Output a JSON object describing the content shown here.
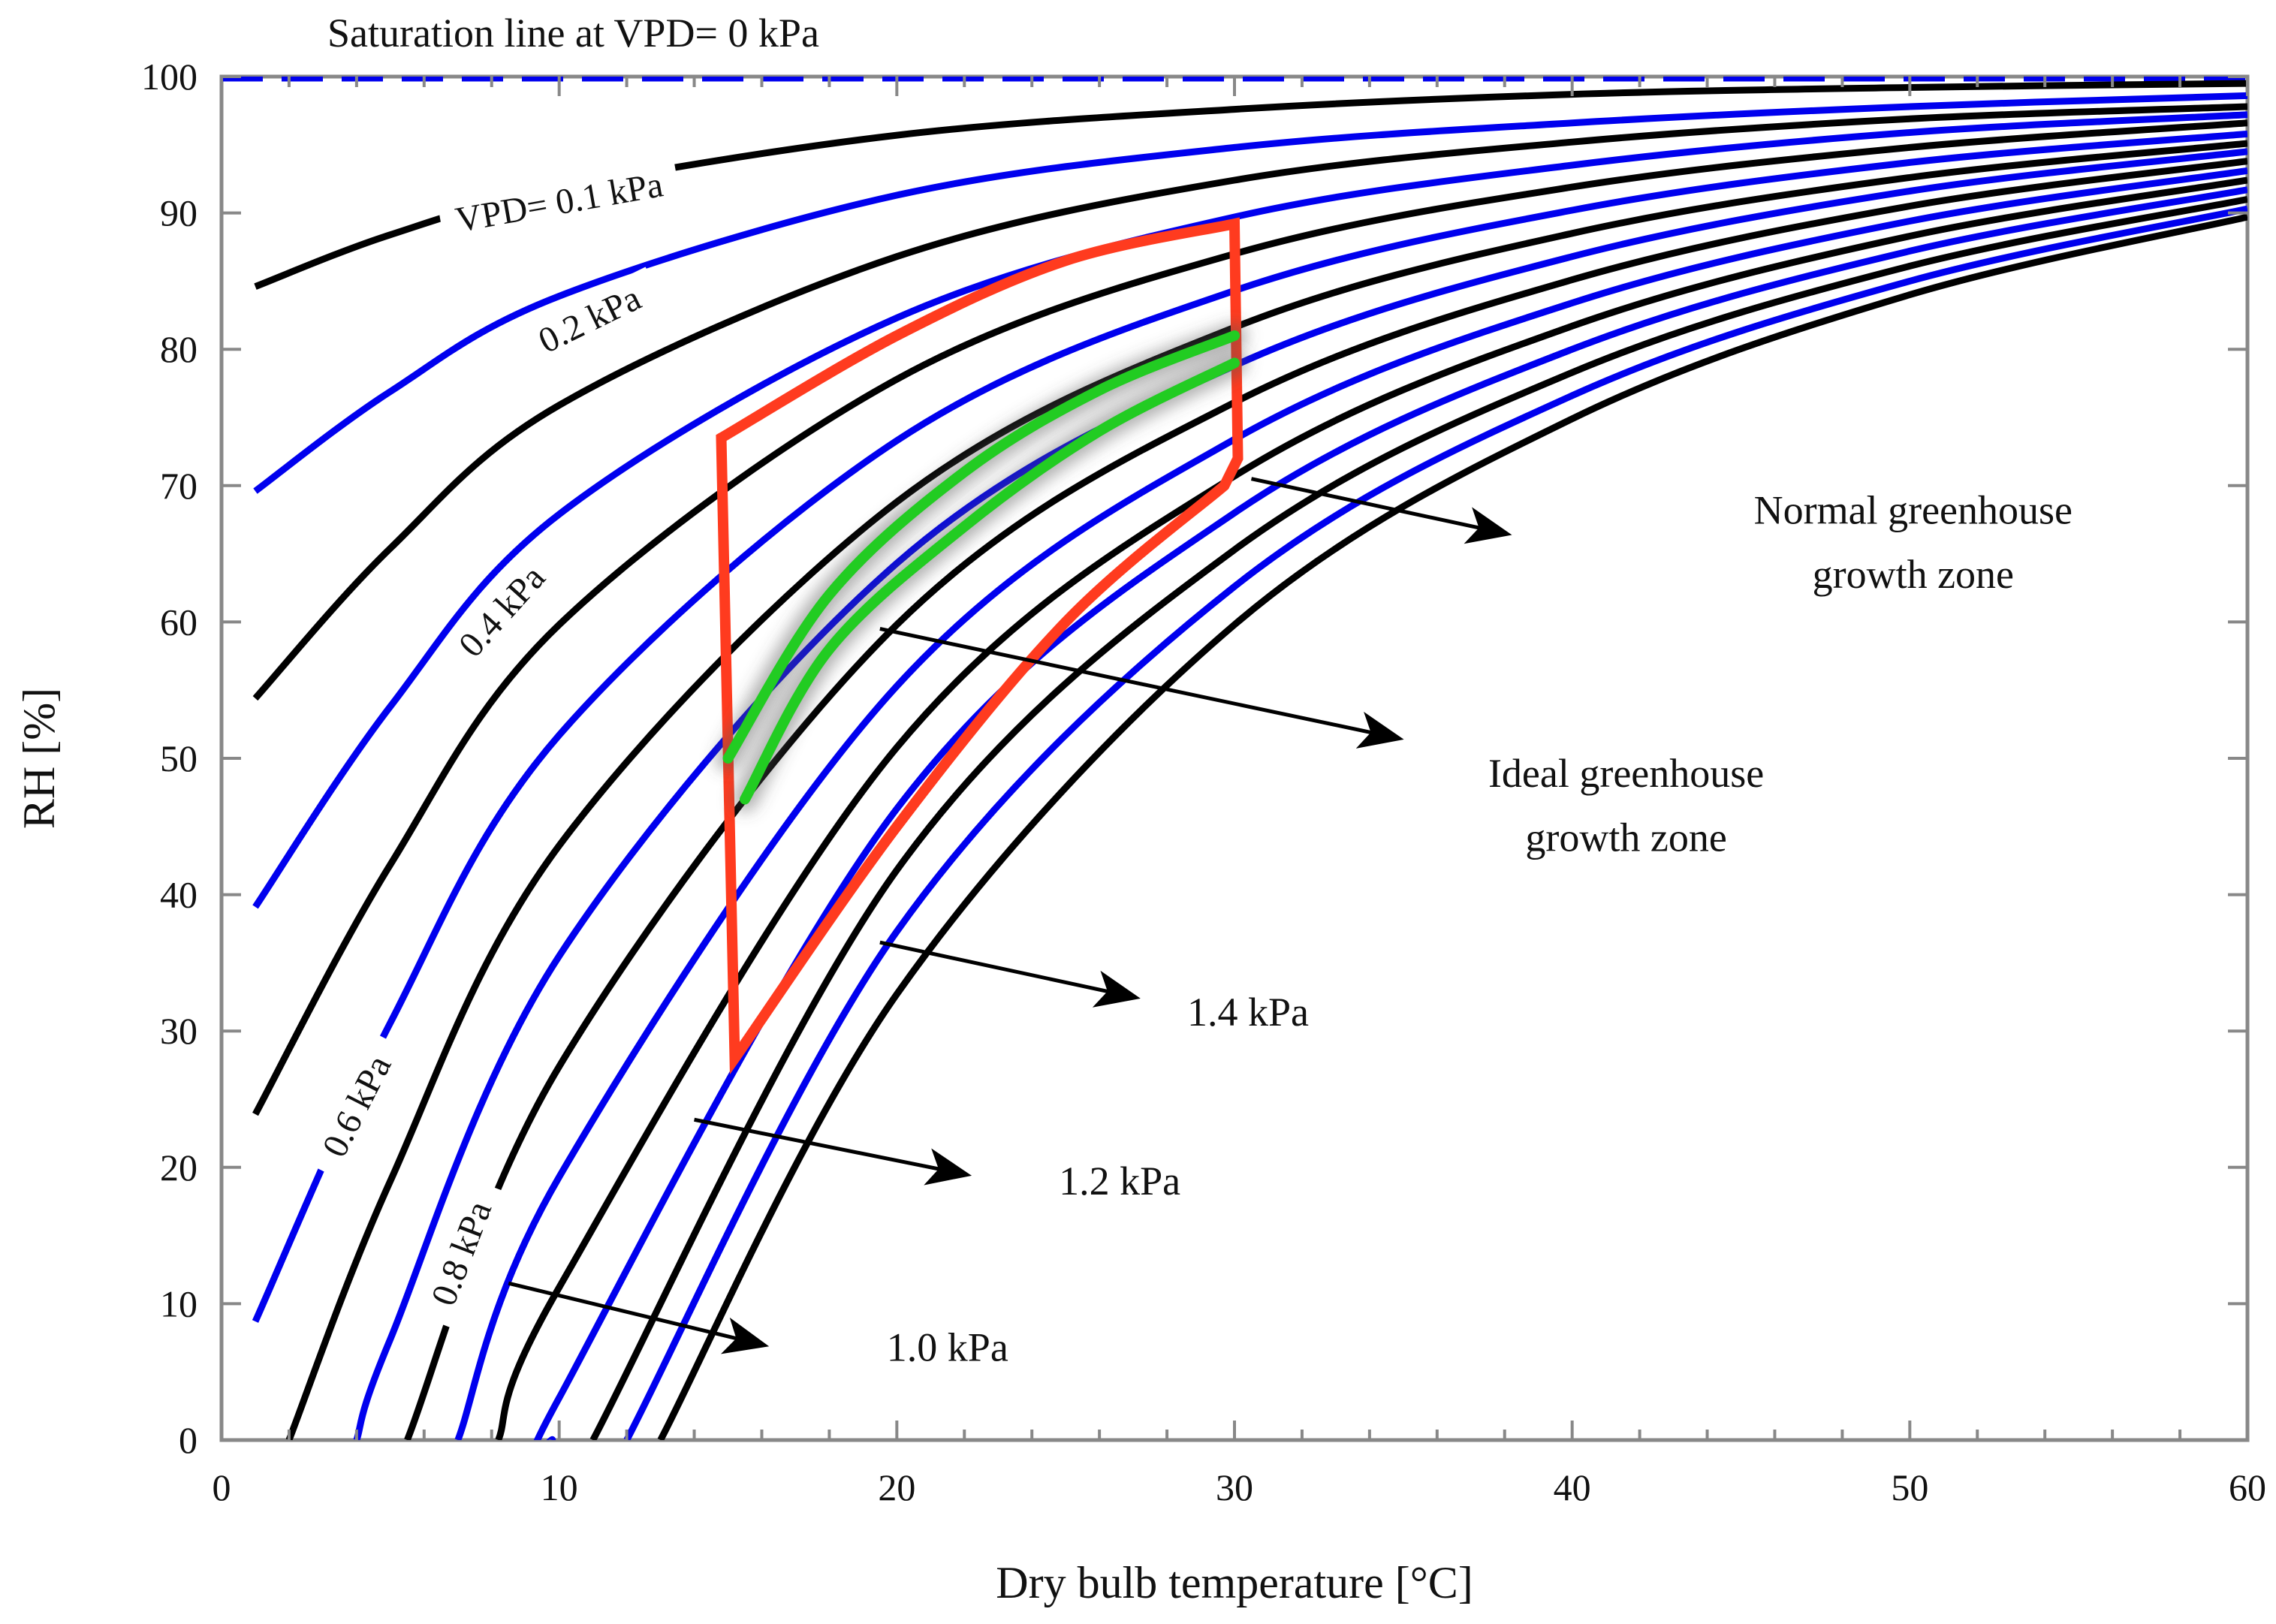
{
  "chart_data": {
    "type": "line",
    "title": "Saturation line at VPD= 0 kPa",
    "xlabel": "Dry bulb temperature [°C]",
    "ylabel": "RH [%]",
    "xlim": [
      0,
      60
    ],
    "ylim": [
      0,
      100
    ],
    "x_ticks": [
      0,
      10,
      20,
      30,
      40,
      50,
      60
    ],
    "y_ticks": [
      0,
      10,
      20,
      30,
      40,
      50,
      60,
      70,
      80,
      90,
      100
    ],
    "colors": {
      "blue": "#0000ee",
      "black": "#000000",
      "red": "#ff3b1f",
      "green": "#22cc22"
    },
    "series": [
      {
        "name": "VPD 0.0 kPa (saturation)",
        "vpd": 0.0,
        "color": "blue",
        "x": [
          0,
          60
        ],
        "values": [
          100,
          100
        ]
      },
      {
        "name": "VPD 0.1 kPa",
        "vpd": 0.1,
        "color": "black",
        "x": [
          1,
          5,
          10,
          20,
          30,
          40,
          50,
          60
        ],
        "values": [
          84.6,
          88.4,
          91.8,
          95.7,
          97.6,
          98.7,
          99.2,
          99.5
        ]
      },
      {
        "name": "VPD 0.2 kPa",
        "vpd": 0.2,
        "color": "blue",
        "x": [
          1,
          5,
          10,
          20,
          30,
          40,
          50,
          60
        ],
        "values": [
          69.6,
          76.9,
          83.9,
          91.3,
          94.8,
          96.6,
          97.8,
          98.6
        ]
      },
      {
        "name": "VPD 0.3 kPa",
        "vpd": 0.3,
        "color": "black",
        "x": [
          1,
          5,
          10,
          20,
          30,
          40,
          50,
          60
        ],
        "values": [
          54.4,
          65.4,
          75.9,
          86.8,
          92.4,
          95.2,
          96.9,
          97.8
        ]
      },
      {
        "name": "VPD 0.4 kPa",
        "vpd": 0.4,
        "color": "blue",
        "x": [
          1,
          5,
          10,
          20,
          30,
          40,
          50,
          60
        ],
        "values": [
          39.1,
          53.8,
          67.9,
          82.3,
          89.7,
          93.5,
          95.9,
          97.2
        ]
      },
      {
        "name": "VPD 0.5 kPa",
        "vpd": 0.5,
        "color": "black",
        "x": [
          1,
          5,
          10,
          20,
          30,
          40,
          50,
          60
        ],
        "values": [
          23.9,
          42.2,
          59.8,
          77.8,
          87.0,
          91.9,
          94.8,
          96.6
        ]
      },
      {
        "name": "VPD 0.6 kPa",
        "vpd": 0.6,
        "color": "blue",
        "x": [
          1,
          5,
          10,
          20,
          30,
          40,
          50,
          60
        ],
        "values": [
          8.7,
          30.6,
          51.7,
          73.3,
          84.3,
          90.2,
          93.7,
          95.8
        ]
      },
      {
        "name": "VPD 0.7 kPa",
        "vpd": 0.7,
        "color": "black",
        "x": [
          2,
          5,
          10,
          20,
          30,
          40,
          50,
          60
        ],
        "values": [
          0,
          19.0,
          43.6,
          68.8,
          81.6,
          88.5,
          92.6,
          95.1
        ]
      },
      {
        "name": "VPD 0.8 kPa",
        "vpd": 0.8,
        "color": "blue",
        "x": [
          4,
          5,
          10,
          20,
          30,
          40,
          50,
          60
        ],
        "values": [
          0,
          7.4,
          35.5,
          64.3,
          78.8,
          86.8,
          91.6,
          94.5
        ]
      },
      {
        "name": "VPD 0.9 kPa",
        "vpd": 0.9,
        "color": "black",
        "x": [
          5.5,
          10,
          20,
          30,
          40,
          50,
          60
        ],
        "values": [
          0,
          27.4,
          59.8,
          76.1,
          85.1,
          90.5,
          93.8
        ]
      },
      {
        "name": "VPD 1.0 kPa",
        "vpd": 1.0,
        "color": "blue",
        "x": [
          7,
          10,
          20,
          30,
          40,
          50,
          60
        ],
        "values": [
          0,
          19.3,
          55.3,
          73.4,
          83.4,
          89.4,
          93.1
        ]
      },
      {
        "name": "VPD 1.1 kPa",
        "vpd": 1.1,
        "color": "black",
        "x": [
          8.2,
          10,
          20,
          30,
          40,
          50,
          60
        ],
        "values": [
          0,
          11.2,
          50.8,
          70.7,
          81.7,
          88.3,
          92.4
        ]
      },
      {
        "name": "VPD 1.2 kPa",
        "vpd": 1.2,
        "color": "blue",
        "x": [
          9.8,
          10,
          20,
          30,
          40,
          50,
          60
        ],
        "values": [
          0,
          3.1,
          46.3,
          68.0,
          80.0,
          87.2,
          91.7
        ]
      },
      {
        "name": "VPD 1.3 kPa",
        "vpd": 1.3,
        "color": "black",
        "x": [
          11,
          20,
          30,
          40,
          50,
          60
        ],
        "values": [
          0,
          41.8,
          65.3,
          78.3,
          86.1,
          91.0
        ]
      },
      {
        "name": "VPD 1.4 kPa",
        "vpd": 1.4,
        "color": "blue",
        "x": [
          12,
          20,
          30,
          40,
          50,
          60
        ],
        "values": [
          0,
          37.3,
          62.6,
          76.6,
          85.0,
          90.3
        ]
      },
      {
        "name": "VPD 1.5 kPa",
        "vpd": 1.5,
        "color": "black",
        "x": [
          13,
          20,
          30,
          40,
          50,
          60
        ],
        "values": [
          0,
          32.7,
          59.8,
          74.9,
          84.0,
          89.7
        ]
      }
    ],
    "zones": [
      {
        "name": "Normal greenhouse growth zone",
        "color": "red",
        "x": [
          14.8,
          20,
          25,
          30,
          30.1,
          29.7,
          25,
          20,
          15.2,
          14.8
        ],
        "values": [
          73.5,
          81,
          86.5,
          89.2,
          72,
          70,
          60,
          45,
          28,
          73.5
        ]
      },
      {
        "name": "Ideal greenhouse growth zone",
        "color": "green",
        "bands": [
          {
            "x": [
              15,
              18,
              22,
              26,
              30
            ],
            "values": [
              50,
              62,
              71,
              77,
              81
            ]
          },
          {
            "x": [
              15.5,
              18,
              22,
              26,
              30
            ],
            "values": [
              47,
              58,
              67,
              74,
              79
            ]
          }
        ]
      }
    ],
    "curve_labels": [
      {
        "text": "VPD= 0.1 kPa",
        "x": 10,
        "y": 90.8,
        "angle": -10
      },
      {
        "text": "0.2 kPa",
        "x": 10.9,
        "y": 82.2,
        "angle": -26
      },
      {
        "text": "0.4 kPa",
        "x": 8.3,
        "y": 60.8,
        "angle": -48
      },
      {
        "text": "0.6 kPa",
        "x": 4,
        "y": 24.5,
        "angle": -63
      },
      {
        "text": "0.8 kPa",
        "x": 7.1,
        "y": 13.7,
        "angle": -69
      }
    ],
    "annotations": [
      {
        "text": "Normal greenhouse",
        "x": 50.1,
        "y": 67.2
      },
      {
        "text": "growth zone",
        "x": 50.1,
        "y": 62.5
      },
      {
        "text": "Ideal greenhouse",
        "x": 41.6,
        "y": 47.9
      },
      {
        "text": "growth zone",
        "x": 41.6,
        "y": 43.2
      },
      {
        "text": "1.4 kPa",
        "x": 30.4,
        "y": 30.4
      },
      {
        "text": "1.2 kPa",
        "x": 26.6,
        "y": 18.0
      },
      {
        "text": "1.0 kPa",
        "x": 21.5,
        "y": 5.8
      }
    ],
    "arrows": [
      {
        "from": [
          30.5,
          70.5
        ],
        "to": [
          38,
          66.5
        ]
      },
      {
        "from": [
          19.5,
          59.5
        ],
        "to": [
          34.8,
          51.5
        ]
      },
      {
        "from": [
          19.5,
          36.5
        ],
        "to": [
          27,
          32.5
        ]
      },
      {
        "from": [
          14,
          23.5
        ],
        "to": [
          22,
          19.5
        ]
      },
      {
        "from": [
          8.5,
          11.5
        ],
        "to": [
          16,
          7
        ]
      }
    ]
  }
}
